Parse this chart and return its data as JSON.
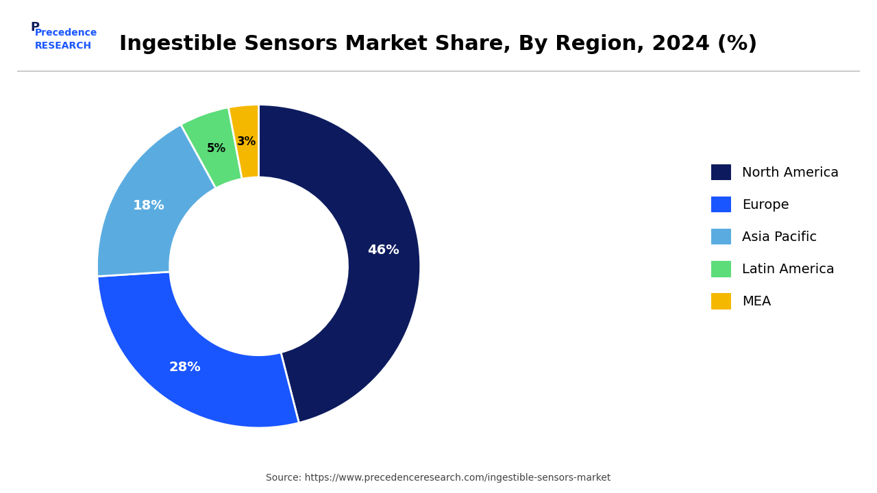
{
  "title": "Ingestible Sensors Market Share, By Region, 2024 (%)",
  "title_fontsize": 22,
  "title_fontweight": "bold",
  "labels": [
    "North America",
    "Europe",
    "Asia Pacific",
    "Latin America",
    "MEA"
  ],
  "values": [
    46,
    28,
    18,
    5,
    3
  ],
  "colors": [
    "#0d1b5e",
    "#1a56ff",
    "#5aace0",
    "#5ddc7a",
    "#f5b800"
  ],
  "label_colors": [
    "white",
    "white",
    "white",
    "black",
    "black"
  ],
  "pct_labels": [
    "46%",
    "28%",
    "18%",
    "5%",
    "3%"
  ],
  "background_color": "#ffffff",
  "source_text": "Source: https://www.precedenceresearch.com/ingestible-sensors-market",
  "legend_fontsize": 14,
  "donut_width": 0.45,
  "startangle": 90
}
